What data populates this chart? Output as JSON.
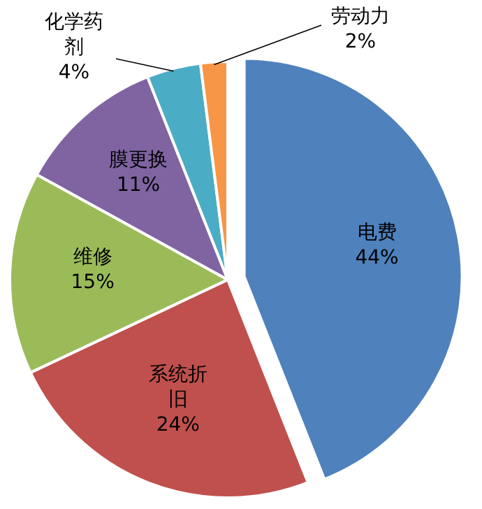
{
  "chart_data": {
    "type": "pie",
    "categories": [
      "电费",
      "系统折旧",
      "维修",
      "膜更换",
      "化学药剂",
      "劳动力"
    ],
    "values": [
      44,
      24,
      15,
      11,
      4,
      2
    ],
    "colors": [
      "#4f81bd",
      "#c0504d",
      "#9bbb59",
      "#8064a2",
      "#4bacc6",
      "#f79646"
    ],
    "value_labels": [
      "44%",
      "24%",
      "15%",
      "11%",
      "4%",
      "2%"
    ]
  }
}
